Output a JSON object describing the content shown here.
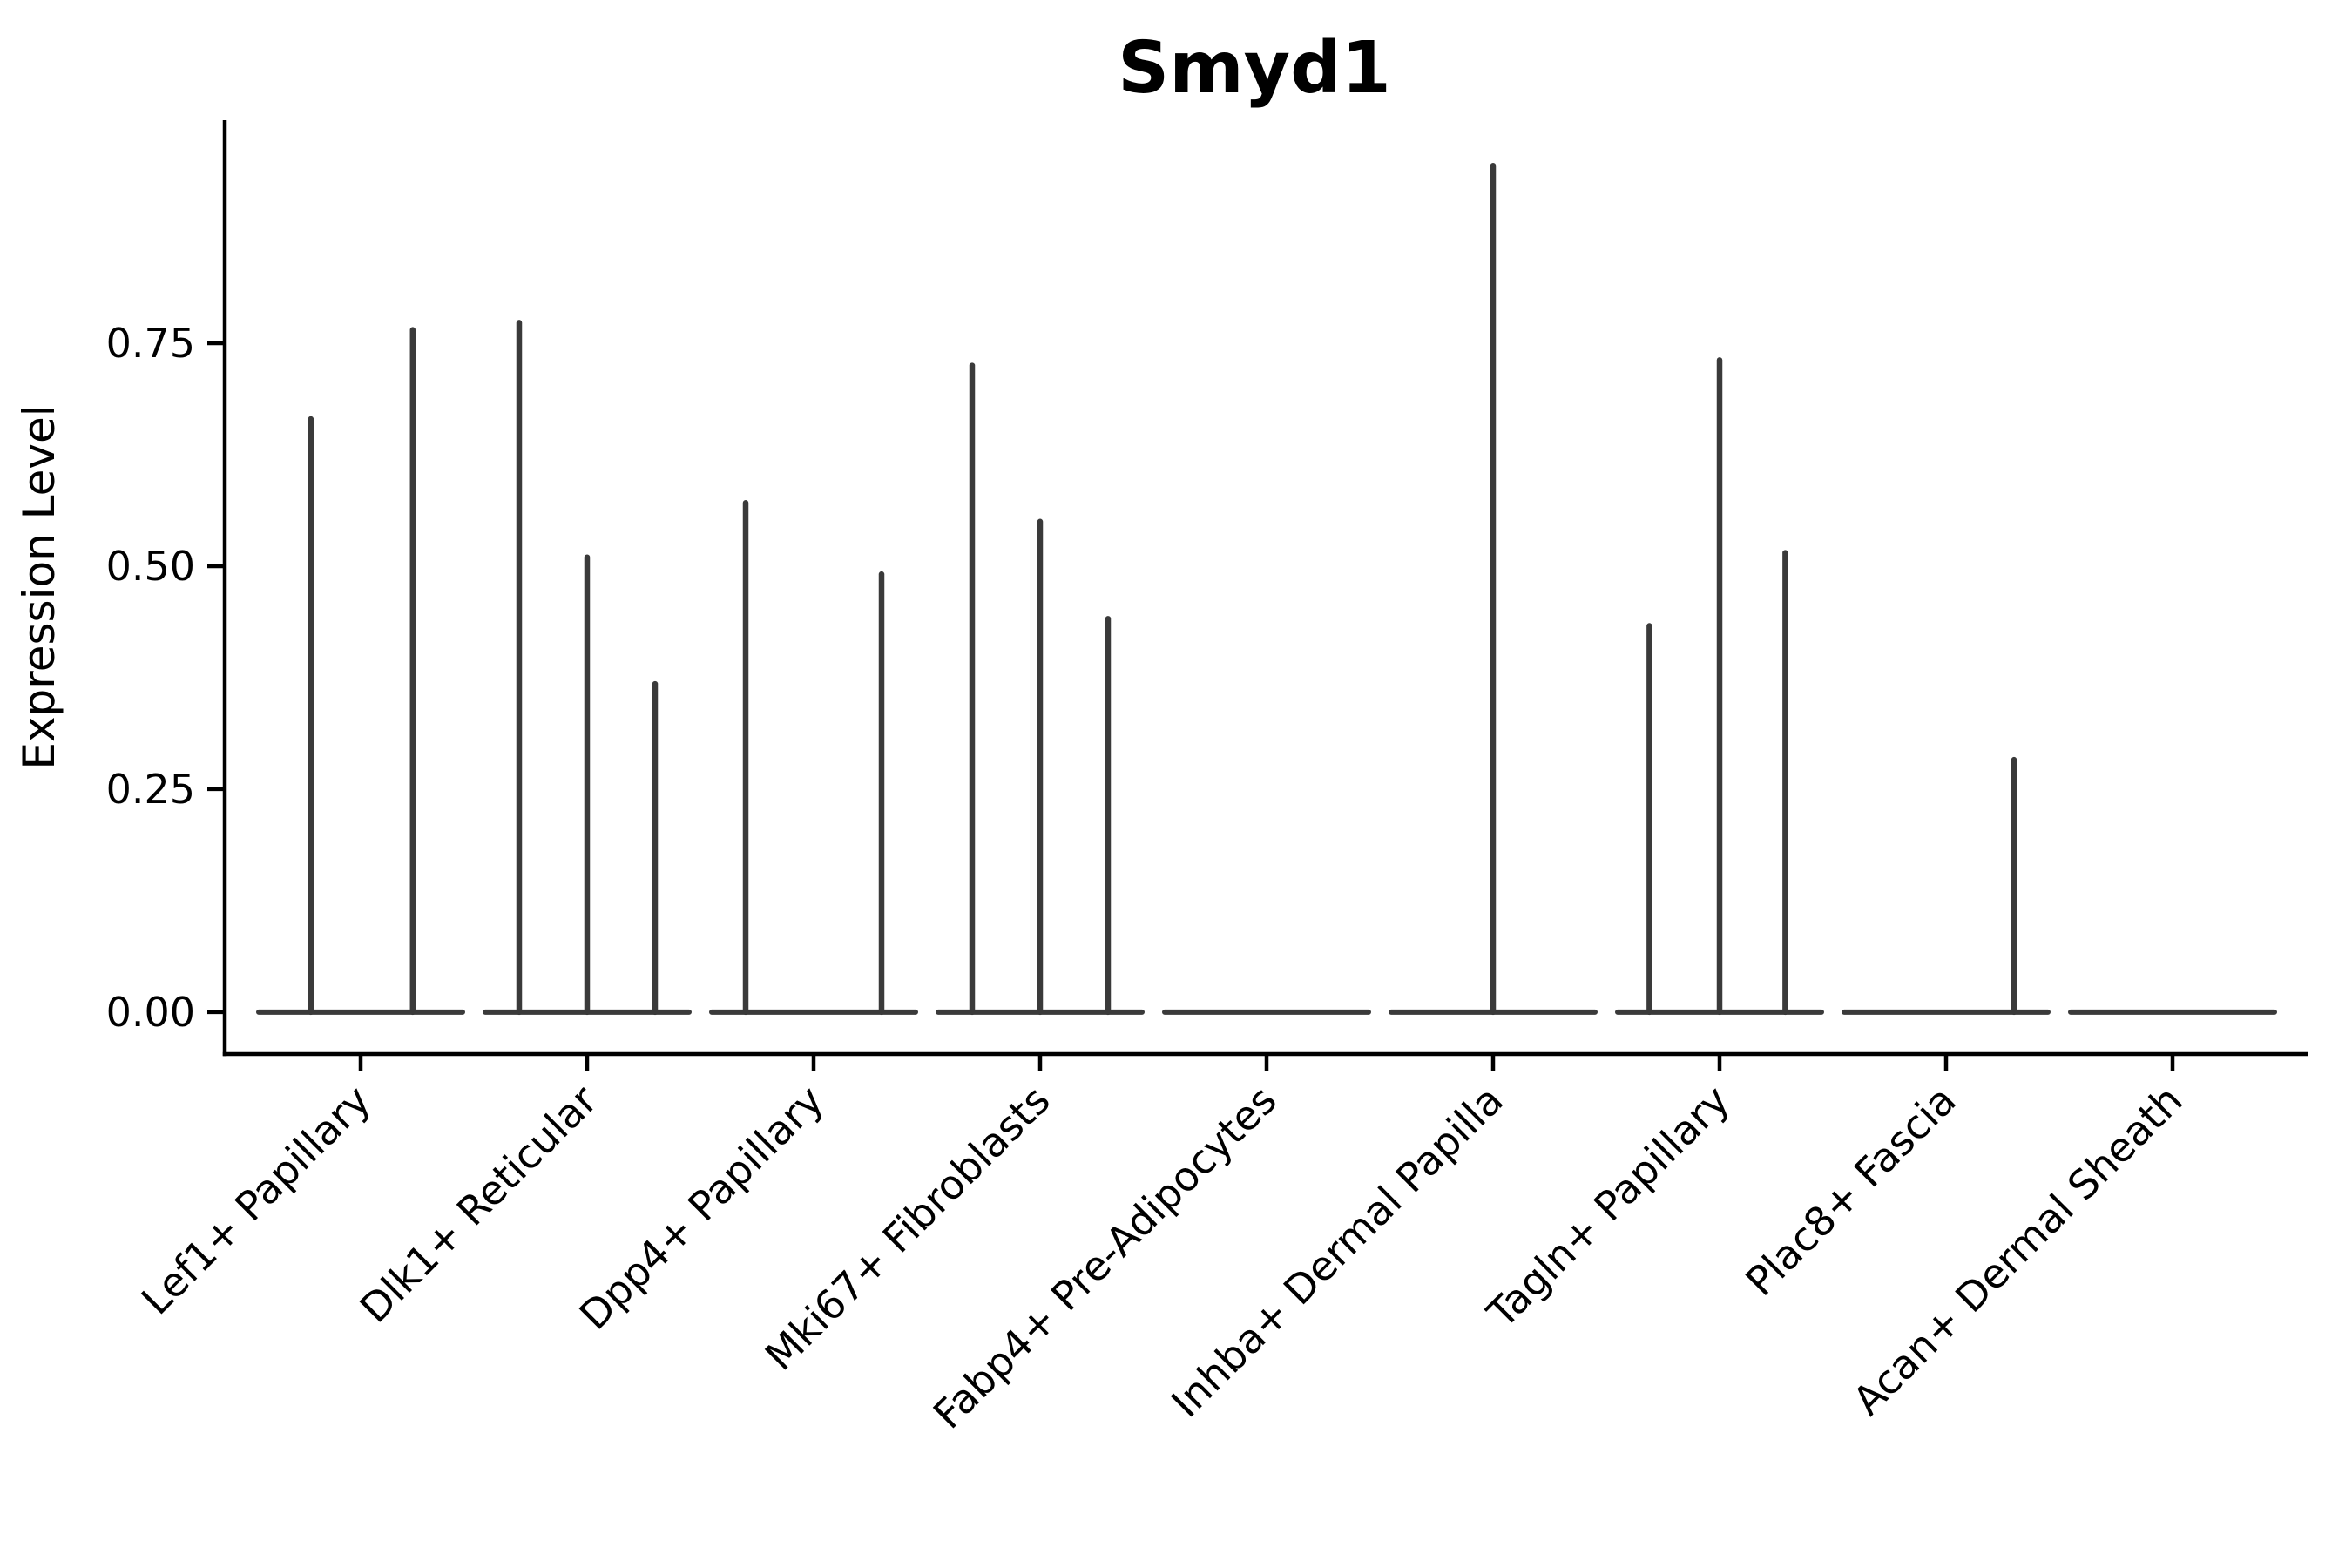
{
  "figure": {
    "background": "#ffffff"
  },
  "chart_data": {
    "type": "violin",
    "title": "Smyd1",
    "xlabel": "",
    "ylabel": "Expression Level",
    "ylim": [
      -0.047,
      1.0
    ],
    "yticks": [
      0,
      0.25,
      0.5,
      0.75
    ],
    "ytick_labels": [
      "0.00",
      "0.25",
      "0.50",
      "0.75"
    ],
    "grid": false,
    "legend_position": "none",
    "x_label_rotation_deg": 45,
    "violin_width": 0.9,
    "categories": [
      "Lef1+ Papillary",
      "Dlk1+ Reticular",
      "Dpp4+ Papillary",
      "Mki67+ Fibroblasts",
      "Fabp4+ Pre-Adipocytes",
      "Inhba+ Dermal Papilla",
      "Tagln+ Papillary",
      "Plac8+ Fascia",
      "Acan+ Dermal Sheath"
    ],
    "series": [
      {
        "category": "Lef1+ Papillary",
        "spikes": [
          {
            "pos": -0.22,
            "value": 0.665
          },
          {
            "pos": 0.23,
            "value": 0.765
          }
        ]
      },
      {
        "category": "Dlk1+ Reticular",
        "spikes": [
          {
            "pos": -0.3,
            "value": 0.773
          },
          {
            "pos": 0.0,
            "value": 0.51
          },
          {
            "pos": 0.3,
            "value": 0.368
          }
        ]
      },
      {
        "category": "Dpp4+ Papillary",
        "spikes": [
          {
            "pos": -0.3,
            "value": 0.571
          },
          {
            "pos": 0.3,
            "value": 0.491
          }
        ]
      },
      {
        "category": "Mki67+ Fibroblasts",
        "spikes": [
          {
            "pos": -0.3,
            "value": 0.725
          },
          {
            "pos": 0.0,
            "value": 0.55
          },
          {
            "pos": 0.3,
            "value": 0.441
          }
        ]
      },
      {
        "category": "Fabp4+ Pre-Adipocytes",
        "spikes": []
      },
      {
        "category": "Inhba+ Dermal Papilla",
        "spikes": [
          {
            "pos": 0.0,
            "value": 0.949
          }
        ]
      },
      {
        "category": "Tagln+ Papillary",
        "spikes": [
          {
            "pos": -0.31,
            "value": 0.433
          },
          {
            "pos": 0.0,
            "value": 0.731
          },
          {
            "pos": 0.29,
            "value": 0.515
          }
        ]
      },
      {
        "category": "Plac8+ Fascia",
        "spikes": [
          {
            "pos": 0.3,
            "value": 0.283
          }
        ]
      },
      {
        "category": "Acan+ Dermal Sheath",
        "spikes": []
      }
    ],
    "colors": {
      "violin": "#3a3a3a",
      "axis": "#000000",
      "text": "#000000",
      "background": "#ffffff"
    }
  }
}
